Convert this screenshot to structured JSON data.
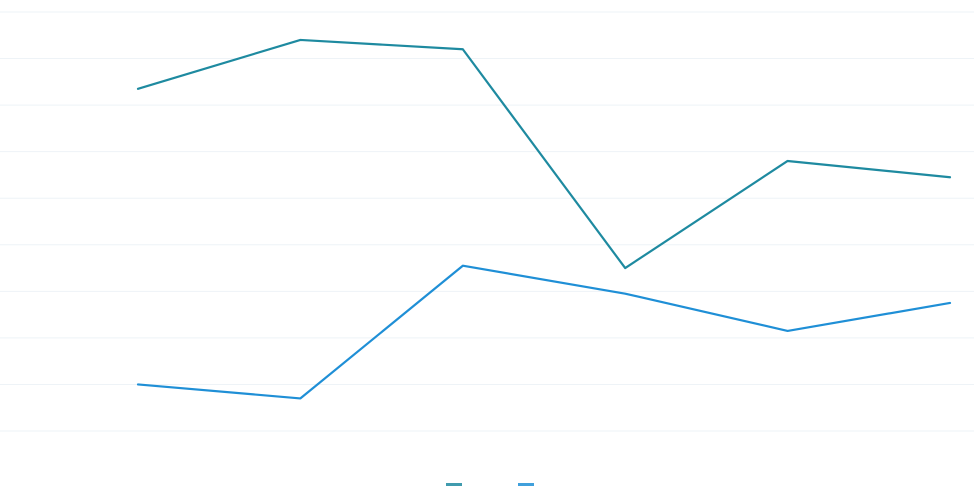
{
  "chart_data": {
    "type": "line",
    "title": "",
    "xlabel": "",
    "ylabel": "",
    "categories": [
      "",
      "",
      "",
      "",
      "",
      ""
    ],
    "ylim": [
      0,
      90
    ],
    "yticks": [
      0,
      10,
      20,
      30,
      40,
      50,
      60,
      70,
      80,
      90
    ],
    "ytick_labels": [
      "",
      "",
      "",
      "",
      "",
      "",
      "",
      "",
      "",
      ""
    ],
    "grid": true,
    "legend": "bottom",
    "series": [
      {
        "color": "#1e8aa0",
        "values": [
          73.5,
          84,
          82,
          35,
          58,
          54.5
        ]
      },
      {
        "color": "#1f8fd6",
        "values": [
          10,
          7,
          35.5,
          29.5,
          21.5,
          27.5
        ]
      }
    ]
  }
}
